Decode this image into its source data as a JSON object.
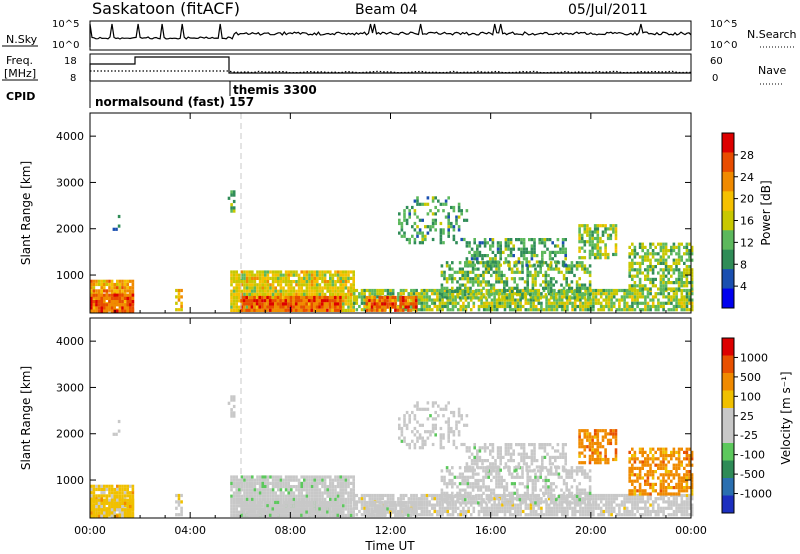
{
  "header": {
    "title": "Saskatoon (fitACF)",
    "beam": "Beam 04",
    "date": "05/Jul/2011"
  },
  "nsky_panel": {
    "left_label": "N.Sky",
    "right_label": "N.Search",
    "tick_top": "10^5",
    "tick_bottom": "10^0"
  },
  "freq_panel": {
    "left_label_1": "Freq.",
    "left_label_2": "[MHz]",
    "left_ticks": [
      "18",
      "8"
    ],
    "right_label": "Nave",
    "right_ticks": [
      "60",
      "0"
    ]
  },
  "cpid": {
    "label": "CPID",
    "mode_1": "normalsound (fast) 157",
    "mode_2": "themis 3300"
  },
  "chart_data": [
    {
      "type": "heatmap",
      "panel": "power",
      "ylabel": "Slant Range [km]",
      "xlabel": "",
      "x_ticks": [
        "00:00",
        "04:00",
        "08:00",
        "12:00",
        "16:00",
        "20:00",
        "00:00"
      ],
      "xlim_hours": [
        0,
        24
      ],
      "y_ticks": [
        1000,
        2000,
        3000,
        4000
      ],
      "ylim": [
        180,
        4500
      ],
      "colorbar": {
        "label": "Power [dB]",
        "ticks": [
          "28",
          "24",
          "20",
          "16",
          "12",
          "8",
          "4"
        ],
        "colors": [
          "#0000ee",
          "#1a4fb0",
          "#2f8c57",
          "#5cb85c",
          "#c8c800",
          "#f5c000",
          "#f08a00",
          "#e84c00",
          "#dd0000"
        ]
      }
    },
    {
      "type": "heatmap",
      "panel": "velocity",
      "ylabel": "Slant Range [km]",
      "xlabel": "Time UT",
      "x_ticks": [
        "00:00",
        "04:00",
        "08:00",
        "12:00",
        "16:00",
        "20:00",
        "00:00"
      ],
      "xlim_hours": [
        0,
        24
      ],
      "y_ticks": [
        1000,
        2000,
        3000,
        4000
      ],
      "ylim": [
        180,
        4500
      ],
      "colorbar": {
        "label": "Velocity [m s⁻¹]",
        "ticks": [
          "1000",
          "500",
          "100",
          "25",
          "-25",
          "-100",
          "-500",
          "-1000"
        ],
        "colors": [
          "#1c2fbf",
          "#2a6fb0",
          "#2e8b57",
          "#5cc85c",
          "#c8c8c8",
          "#c8c8c8",
          "#f0c000",
          "#f08a00",
          "#e85000",
          "#dd0000"
        ]
      }
    }
  ],
  "scatter_regions": [
    {
      "t0": 0.0,
      "t1": 1.7,
      "r0": 250,
      "r1": 900,
      "p": 0.95,
      "pw": 22,
      "vel": 0.62
    },
    {
      "t0": 0.0,
      "t1": 1.7,
      "r0": 250,
      "r1": 600,
      "p": 0.95,
      "pw": 28,
      "vel": 0.62
    },
    {
      "t0": 3.4,
      "t1": 3.7,
      "r0": 250,
      "r1": 700,
      "p": 0.8,
      "pw": 20,
      "vel": 0.6
    },
    {
      "t0": 5.6,
      "t1": 10.5,
      "r0": 250,
      "r1": 1100,
      "p": 0.9,
      "pw": 18,
      "vel": 0.45
    },
    {
      "t0": 6.0,
      "t1": 10.0,
      "r0": 250,
      "r1": 550,
      "p": 0.95,
      "pw": 27,
      "vel": 0.48
    },
    {
      "t0": 10.5,
      "t1": 24.0,
      "r0": 250,
      "r1": 700,
      "p": 0.8,
      "pw": 14,
      "vel": 0.52
    },
    {
      "t0": 11.0,
      "t1": 13.0,
      "r0": 250,
      "r1": 550,
      "p": 0.9,
      "pw": 26,
      "vel": 0.5
    },
    {
      "t0": 14.0,
      "t1": 20.0,
      "r0": 500,
      "r1": 1300,
      "p": 0.55,
      "pw": 12,
      "vel": 0.47
    },
    {
      "t0": 12.3,
      "t1": 15.0,
      "r0": 1700,
      "r1": 2700,
      "p": 0.35,
      "pw": 10,
      "vel": 0.48
    },
    {
      "t0": 15.0,
      "t1": 19.0,
      "r0": 1200,
      "r1": 1800,
      "p": 0.45,
      "pw": 10,
      "vel": 0.48
    },
    {
      "t0": 19.5,
      "t1": 21.0,
      "r0": 1400,
      "r1": 2100,
      "p": 0.6,
      "pw": 14,
      "vel": 0.8
    },
    {
      "t0": 21.5,
      "t1": 24.0,
      "r0": 700,
      "r1": 1700,
      "p": 0.6,
      "pw": 13,
      "vel": 0.75
    },
    {
      "t0": 5.5,
      "t1": 5.8,
      "r0": 2300,
      "r1": 2900,
      "p": 0.5,
      "pw": 12,
      "vel": 0.48
    },
    {
      "t0": 0.8,
      "t1": 1.2,
      "r0": 1900,
      "r1": 2300,
      "p": 0.25,
      "pw": 8,
      "vel": 0.45
    }
  ]
}
